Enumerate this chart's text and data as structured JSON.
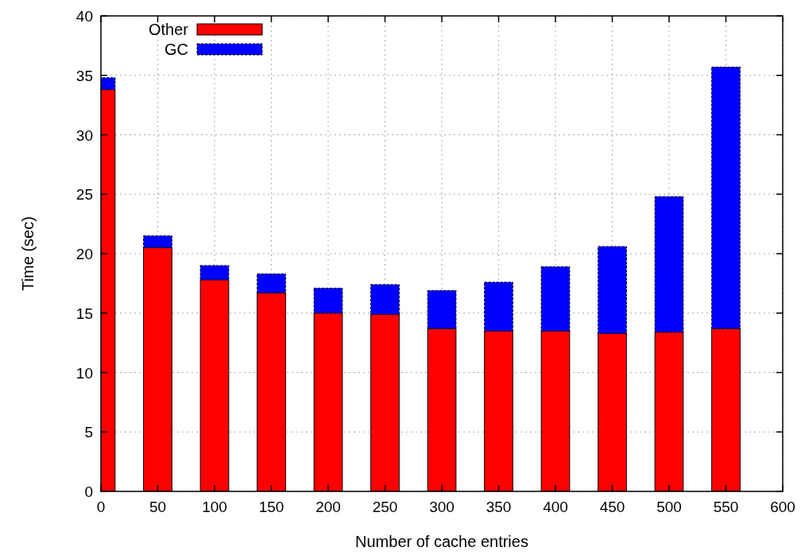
{
  "chart_data": {
    "type": "bar",
    "stacked": true,
    "xlabel": "Number of cache entries",
    "ylabel": "Time (sec)",
    "x": [
      0,
      50,
      100,
      150,
      200,
      250,
      300,
      350,
      400,
      450,
      500,
      550
    ],
    "series": [
      {
        "name": "Other",
        "color": "#ff0000",
        "values": [
          33.8,
          20.5,
          17.8,
          16.7,
          15.0,
          14.9,
          13.7,
          13.5,
          13.5,
          13.3,
          13.4,
          13.7
        ]
      },
      {
        "name": "GC",
        "color": "#0000ff",
        "values": [
          1.0,
          1.0,
          1.2,
          1.6,
          2.1,
          2.5,
          3.2,
          4.1,
          5.4,
          7.3,
          11.4,
          22.0
        ]
      }
    ],
    "xlim": [
      0,
      600
    ],
    "xticks": [
      0,
      50,
      100,
      150,
      200,
      250,
      300,
      350,
      400,
      450,
      500,
      550,
      600
    ],
    "ylim": [
      0,
      40
    ],
    "yticks": [
      0,
      5,
      10,
      15,
      20,
      25,
      30,
      35,
      40
    ],
    "grid": true,
    "legend": "top left"
  }
}
